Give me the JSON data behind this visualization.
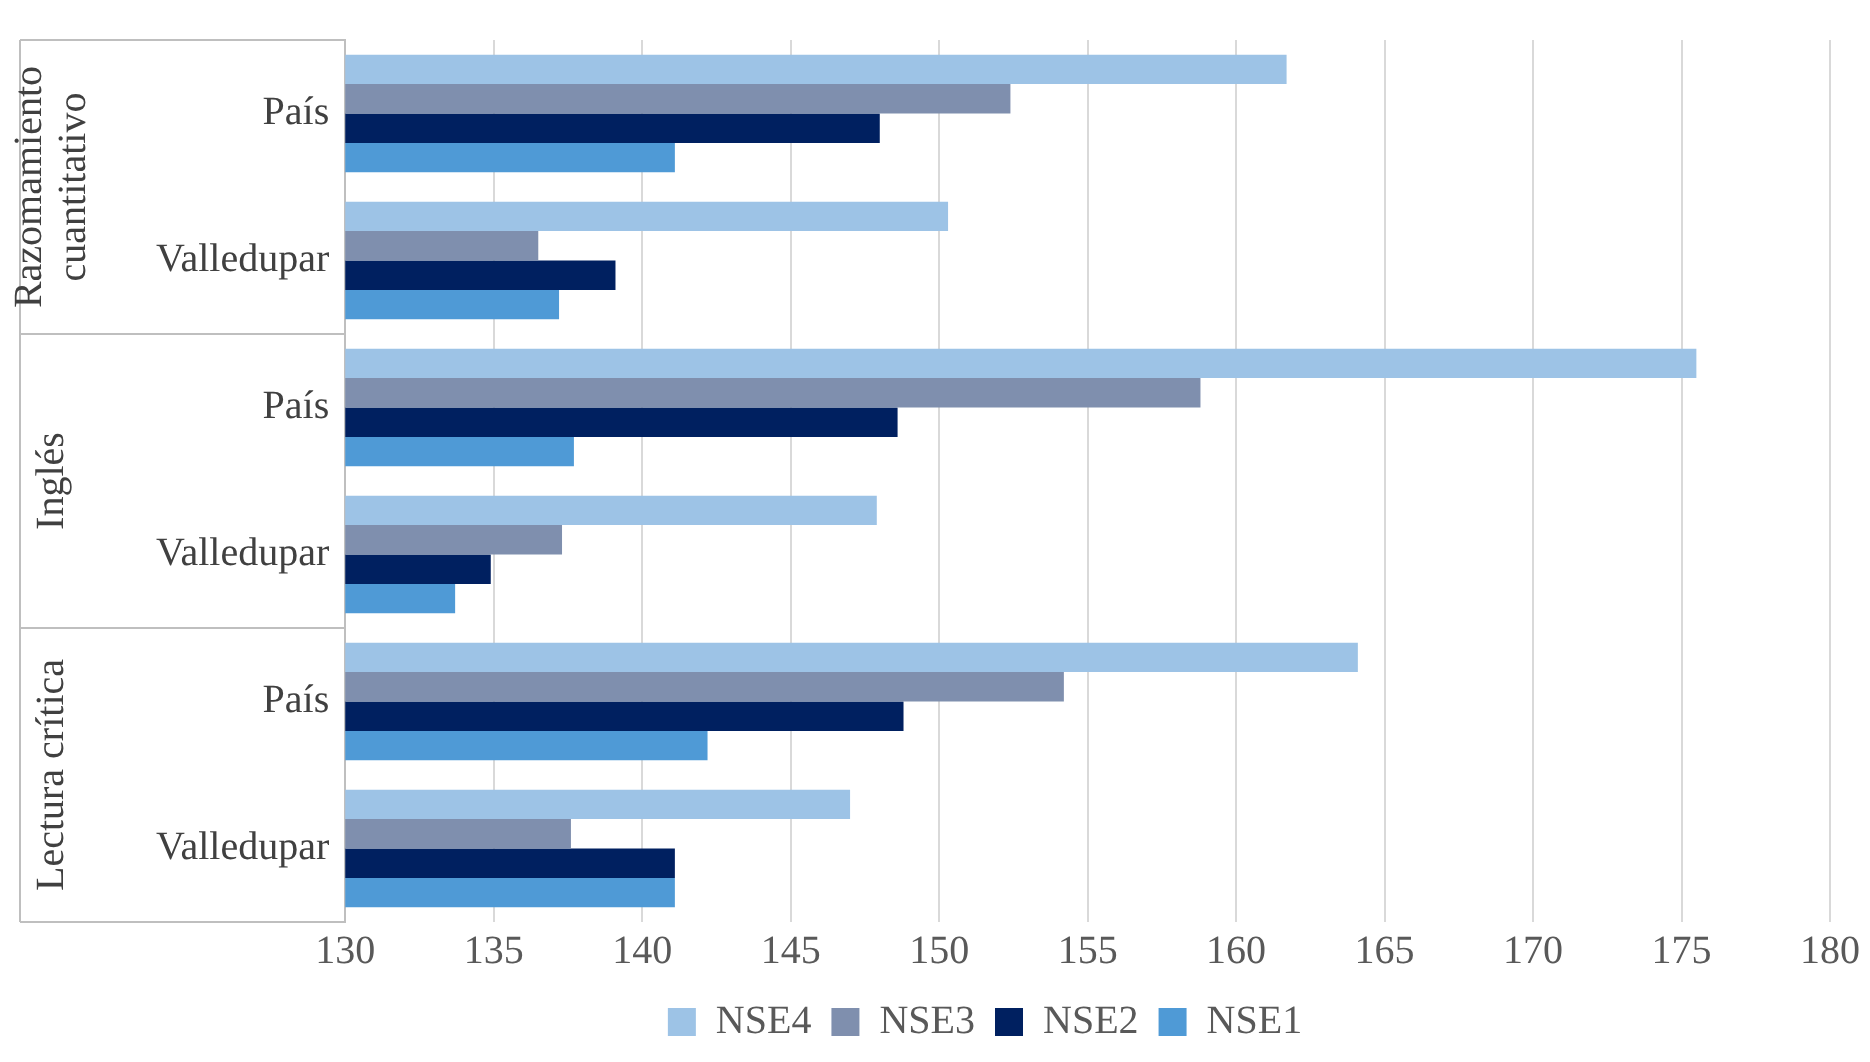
{
  "chart_data": {
    "type": "bar",
    "orientation": "horizontal",
    "categories": [
      "País",
      "Valledupar",
      "País",
      "Valledupar",
      "País",
      "Valledupar"
    ],
    "annotations": [
      "Razomamiento cuantitativo",
      "Inglés",
      "Lectura crítica"
    ],
    "series": [
      {
        "name": "NSE4",
        "color": "#9dc3e6",
        "values": [
          161.7,
          150.3,
          175.5,
          147.9,
          164.1,
          147.0
        ]
      },
      {
        "name": "NSE3",
        "color": "#7f8fae",
        "values": [
          152.4,
          136.5,
          158.8,
          137.3,
          154.2,
          137.6
        ]
      },
      {
        "name": "NSE2",
        "color": "#002060",
        "values": [
          148.0,
          139.1,
          148.6,
          134.9,
          148.8,
          141.1
        ]
      },
      {
        "name": "NSE1",
        "color": "#4f9ad6",
        "values": [
          141.1,
          137.2,
          137.7,
          133.7,
          142.2,
          141.1
        ]
      }
    ],
    "xlim": [
      130,
      180
    ],
    "xticks": [
      130,
      135,
      140,
      145,
      150,
      155,
      160,
      165,
      170,
      175,
      180
    ],
    "grid": "x",
    "legend": "bottom"
  }
}
